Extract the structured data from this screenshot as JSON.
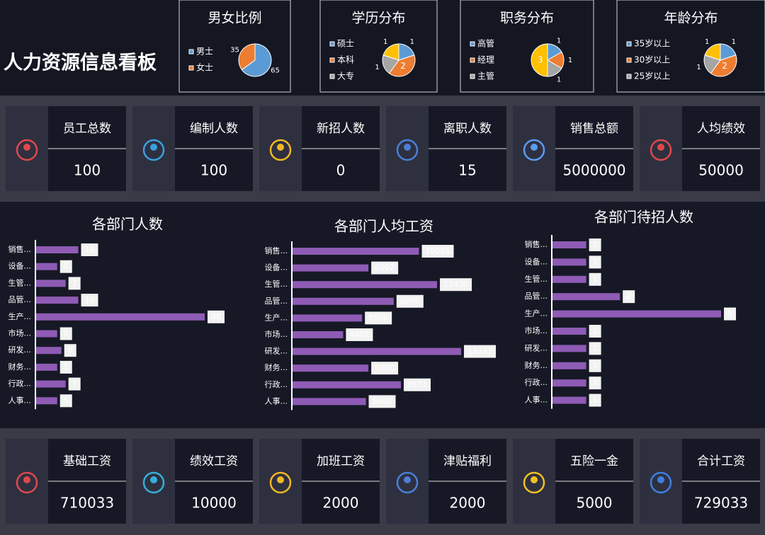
{
  "title": "人力资源信息看板",
  "kpi_top": [
    {
      "label": "员工总数",
      "value": 100,
      "color": "#e0202a"
    },
    {
      "label": "编制人数",
      "value": 100
    },
    {
      "label": "新招人数",
      "value": 0
    },
    {
      "label": "离职人数",
      "value": 15
    },
    {
      "label": "销售总额",
      "value": 5000000
    },
    {
      "label": "人均绩效",
      "value": 50000
    }
  ],
  "kpi_bottom": [
    {
      "label": "基础工资",
      "value": 710033
    },
    {
      "label": "绩效工资",
      "value": 10000
    },
    {
      "label": "加班工资",
      "value": 2000
    },
    {
      "label": "津贴福利",
      "value": 2000
    },
    {
      "label": "五险一金",
      "value": 5000
    },
    {
      "label": "合计工资",
      "value": 729033
    }
  ],
  "chart_data": [
    {
      "type": "pie",
      "title": "男女比例",
      "categories": [
        "男士",
        "女士"
      ],
      "values": [
        65,
        35
      ],
      "colors": [
        "#5b9bd5",
        "#ed7d31"
      ]
    },
    {
      "type": "pie",
      "title": "学历分布",
      "categories": [
        "硕士",
        "本科",
        "大专",
        null
      ],
      "values": [
        1,
        2,
        1,
        1
      ],
      "colors": [
        "#5b9bd5",
        "#ed7d31",
        "#a5a5a5",
        "#ffc000"
      ]
    },
    {
      "type": "pie",
      "title": "职务分布",
      "categories": [
        "高管",
        "经理",
        "主管",
        null
      ],
      "values": [
        1,
        1,
        1,
        3
      ],
      "colors": [
        "#5b9bd5",
        "#ed7d31",
        "#a5a5a5",
        "#ffc000"
      ]
    },
    {
      "type": "pie",
      "title": "年龄分布",
      "categories": [
        "35岁以上",
        "30岁以上",
        "25岁以上",
        null
      ],
      "values": [
        1,
        2,
        1,
        1
      ],
      "colors": [
        "#5b9bd5",
        "#ed7d31",
        "#a5a5a5",
        "#ffc000"
      ]
    },
    {
      "type": "bar",
      "title": "各部门人数",
      "categories": [
        "销售...",
        "设备...",
        "生管...",
        "品管...",
        "生产...",
        "市场...",
        "研发...",
        "财务...",
        "行政...",
        "人事..."
      ],
      "values": [
        10,
        5,
        7,
        10,
        40,
        5,
        6,
        5,
        7,
        5
      ],
      "color": "#8e5bb5"
    },
    {
      "type": "bar",
      "title": "各部门人均工资",
      "categories": [
        "销售...",
        "设备...",
        "生管...",
        "品管...",
        "生产...",
        "市场...",
        "研发...",
        "财务...",
        "行政...",
        "人事..."
      ],
      "values": [
        10001,
        6002,
        11430,
        8000,
        5500,
        4001,
        13333,
        6000,
        8571,
        5800
      ],
      "color": "#8e5bb5"
    },
    {
      "type": "bar",
      "title": "各部门待招人数",
      "categories": [
        "销售...",
        "设备...",
        "生管...",
        "品管...",
        "生产...",
        "市场...",
        "研发...",
        "财务...",
        "行政...",
        "人事..."
      ],
      "values": [
        1,
        1,
        1,
        2,
        5,
        1,
        1,
        1,
        1,
        1
      ],
      "color": "#8e5bb5"
    }
  ]
}
